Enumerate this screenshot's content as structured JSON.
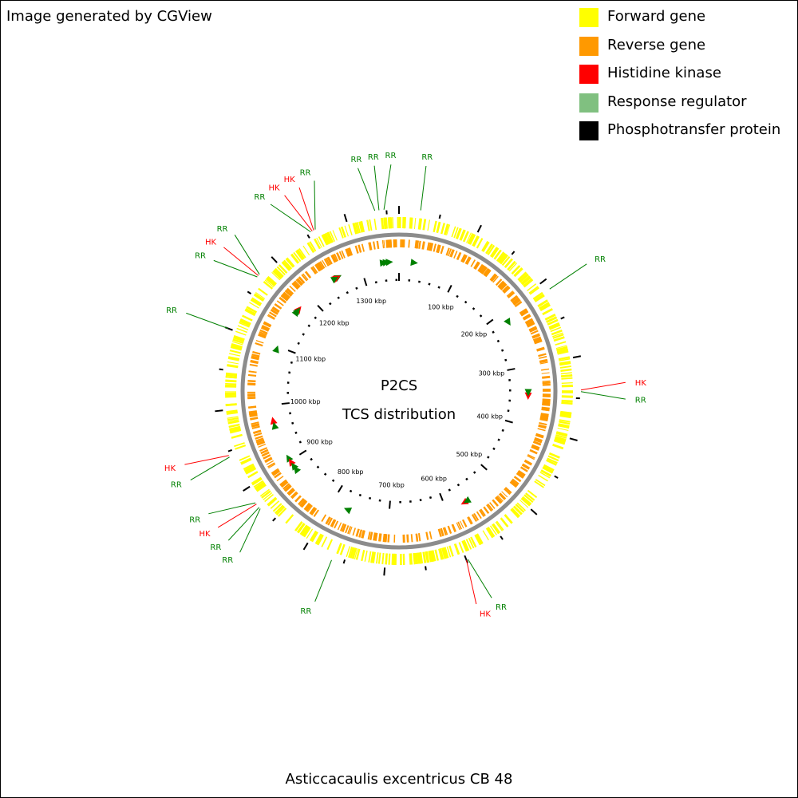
{
  "credit": "Image generated by CGView",
  "legend": [
    {
      "label": "Forward gene",
      "color": "#ffff00"
    },
    {
      "label": "Reverse gene",
      "color": "#ff9900"
    },
    {
      "label": "Histidine kinase",
      "color": "#ff0000"
    },
    {
      "label": "Response regulator",
      "color": "#80c080"
    },
    {
      "label": "Phosphotransfer protein",
      "color": "#000000"
    }
  ],
  "center": {
    "line1": "P2CS",
    "line2": "TCS distribution"
  },
  "organism": "Asticcacaulis excentricus CB 48",
  "genome_length_kbp": 1365,
  "ruler_labels": [
    "100 kbp",
    "200 kbp",
    "300 kbp",
    "400 kbp",
    "500 kbp",
    "600 kbp",
    "700 kbp",
    "800 kbp",
    "900 kbp",
    "1000 kbp",
    "1100 kbp",
    "1200 kbp",
    "1300 kbp"
  ],
  "label_colors": {
    "HK": "#ff0000",
    "RR": "#008000"
  },
  "callouts": [
    {
      "text": "RR",
      "type": "RR",
      "pos_kbp": 26
    },
    {
      "text": "RR",
      "type": "RR",
      "pos_kbp": 1347
    },
    {
      "text": "RR",
      "type": "RR",
      "pos_kbp": 1341
    },
    {
      "text": "RR",
      "type": "RR",
      "pos_kbp": 1336
    },
    {
      "text": "RR",
      "type": "RR",
      "pos_kbp": 1261
    },
    {
      "text": "HK",
      "type": "HK",
      "pos_kbp": 1259
    },
    {
      "text": "HK",
      "type": "HK",
      "pos_kbp": 1257
    },
    {
      "text": "RR",
      "type": "RR",
      "pos_kbp": 1255
    },
    {
      "text": "RR",
      "type": "RR",
      "pos_kbp": 1175
    },
    {
      "text": "HK",
      "type": "HK",
      "pos_kbp": 1173
    },
    {
      "text": "RR",
      "type": "RR",
      "pos_kbp": 1171
    },
    {
      "text": "RR",
      "type": "RR",
      "pos_kbp": 1100
    },
    {
      "text": "HK",
      "type": "HK",
      "pos_kbp": 945
    },
    {
      "text": "RR",
      "type": "RR",
      "pos_kbp": 943
    },
    {
      "text": "RR",
      "type": "RR",
      "pos_kbp": 880
    },
    {
      "text": "HK",
      "type": "HK",
      "pos_kbp": 878
    },
    {
      "text": "RR",
      "type": "RR",
      "pos_kbp": 873
    },
    {
      "text": "RR",
      "type": "RR",
      "pos_kbp": 871
    },
    {
      "text": "RR",
      "type": "RR",
      "pos_kbp": 765
    },
    {
      "text": "HK",
      "type": "HK",
      "pos_kbp": 600
    },
    {
      "text": "RR",
      "type": "RR",
      "pos_kbp": 598
    },
    {
      "text": "HK",
      "type": "HK",
      "pos_kbp": 340
    },
    {
      "text": "RR",
      "type": "RR",
      "pos_kbp": 342
    },
    {
      "text": "RR",
      "type": "RR",
      "pos_kbp": 212
    }
  ],
  "features": [
    {
      "type": "RR",
      "pos_kbp": 26
    },
    {
      "type": "RR",
      "pos_kbp": 1349
    },
    {
      "type": "RR",
      "pos_kbp": 1344
    },
    {
      "type": "RR",
      "pos_kbp": 1339
    },
    {
      "type": "RR",
      "pos_kbp": 1259
    },
    {
      "type": "HK",
      "pos_kbp": 1257
    },
    {
      "type": "HK",
      "pos_kbp": 1255
    },
    {
      "type": "RR",
      "pos_kbp": 1253
    },
    {
      "type": "HK",
      "pos_kbp": 1173
    },
    {
      "type": "RR",
      "pos_kbp": 1170
    },
    {
      "type": "RR",
      "pos_kbp": 1167
    },
    {
      "type": "RR",
      "pos_kbp": 1096
    },
    {
      "type": "HK",
      "pos_kbp": 974
    },
    {
      "type": "RR",
      "pos_kbp": 965
    },
    {
      "type": "RR",
      "pos_kbp": 906
    },
    {
      "type": "HK",
      "pos_kbp": 898
    },
    {
      "type": "RR",
      "pos_kbp": 890
    },
    {
      "type": "RR",
      "pos_kbp": 883
    },
    {
      "type": "RR",
      "pos_kbp": 772
    },
    {
      "type": "HK",
      "pos_kbp": 568
    },
    {
      "type": "RR",
      "pos_kbp": 563
    },
    {
      "type": "HK",
      "pos_kbp": 350
    },
    {
      "type": "RR",
      "pos_kbp": 344
    },
    {
      "type": "RR",
      "pos_kbp": 220
    }
  ]
}
